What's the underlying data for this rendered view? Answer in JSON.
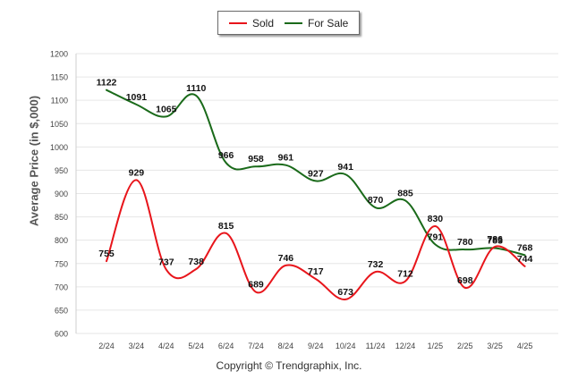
{
  "chart_data": {
    "type": "line",
    "ylabel": "Average Price (in $,000)",
    "ylim": [
      600,
      1200
    ],
    "yticks": [
      600,
      650,
      700,
      750,
      800,
      850,
      900,
      950,
      1000,
      1050,
      1100,
      1150,
      1200
    ],
    "categories": [
      "2/24",
      "3/24",
      "4/24",
      "5/24",
      "6/24",
      "7/24",
      "8/24",
      "9/24",
      "10/24",
      "11/24",
      "12/24",
      "1/25",
      "2/25",
      "3/25",
      "4/25"
    ],
    "grid": true,
    "legend_position": "top-center",
    "series": [
      {
        "name": "Sold",
        "color": "#e8151b",
        "values": [
          755,
          929,
          737,
          738,
          815,
          689,
          746,
          717,
          673,
          732,
          712,
          830,
          698,
          786,
          744
        ]
      },
      {
        "name": "For Sale",
        "color": "#1a6a1a",
        "values": [
          1122,
          1091,
          1065,
          1110,
          966,
          958,
          961,
          927,
          941,
          870,
          885,
          791,
          780,
          783,
          768
        ]
      }
    ]
  },
  "footer": {
    "credit": "Copyright © Trendgraphix, Inc."
  }
}
